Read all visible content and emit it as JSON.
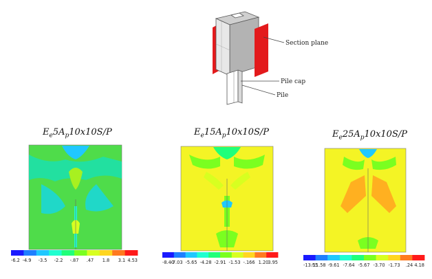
{
  "schematic": {
    "section_plane_label": "Section plane",
    "pile_cap_label": "Pile cap",
    "pile_label": "Pile",
    "plane_color": "#e31a1c"
  },
  "panels": [
    {
      "title": {
        "pre": "E",
        "sub1": "e",
        "mid": "5A",
        "sub2": "p",
        "post": "10x10S/P"
      },
      "scale_labels": [
        "-6.2",
        "-4.9",
        "-3.5",
        "-2.2",
        "-.87",
        ".47",
        "1.8",
        "3.1",
        "4.53"
      ],
      "dominant_color": "#4fdc4a"
    },
    {
      "title": {
        "pre": "E",
        "sub1": "e",
        "mid": "15A",
        "sub2": "p",
        "post": "10x10S/P"
      },
      "scale_labels": [
        "-8.40",
        "-7.03",
        "-5.65",
        "-4.28",
        "-2.91",
        "-1.53",
        "-.166",
        "1.20",
        "3.95"
      ],
      "dominant_color": "#f4f425"
    },
    {
      "title": {
        "pre": "E",
        "sub1": "e",
        "mid": "25A",
        "sub2": "p",
        "post": "10x10S/P"
      },
      "scale_labels": [
        "-13.55",
        "-11.58",
        "-9.61",
        "-7.64",
        "-5.67",
        "-3.70",
        "-1.73",
        ".24",
        "4.18"
      ],
      "dominant_color": "#f4f425"
    }
  ],
  "colorbar_colors": [
    "#1a1aff",
    "#1f7fff",
    "#20c8ff",
    "#20ffd0",
    "#20ff7a",
    "#7aff20",
    "#d8ff20",
    "#ffd620",
    "#ff7a20",
    "#ff1a1a"
  ]
}
